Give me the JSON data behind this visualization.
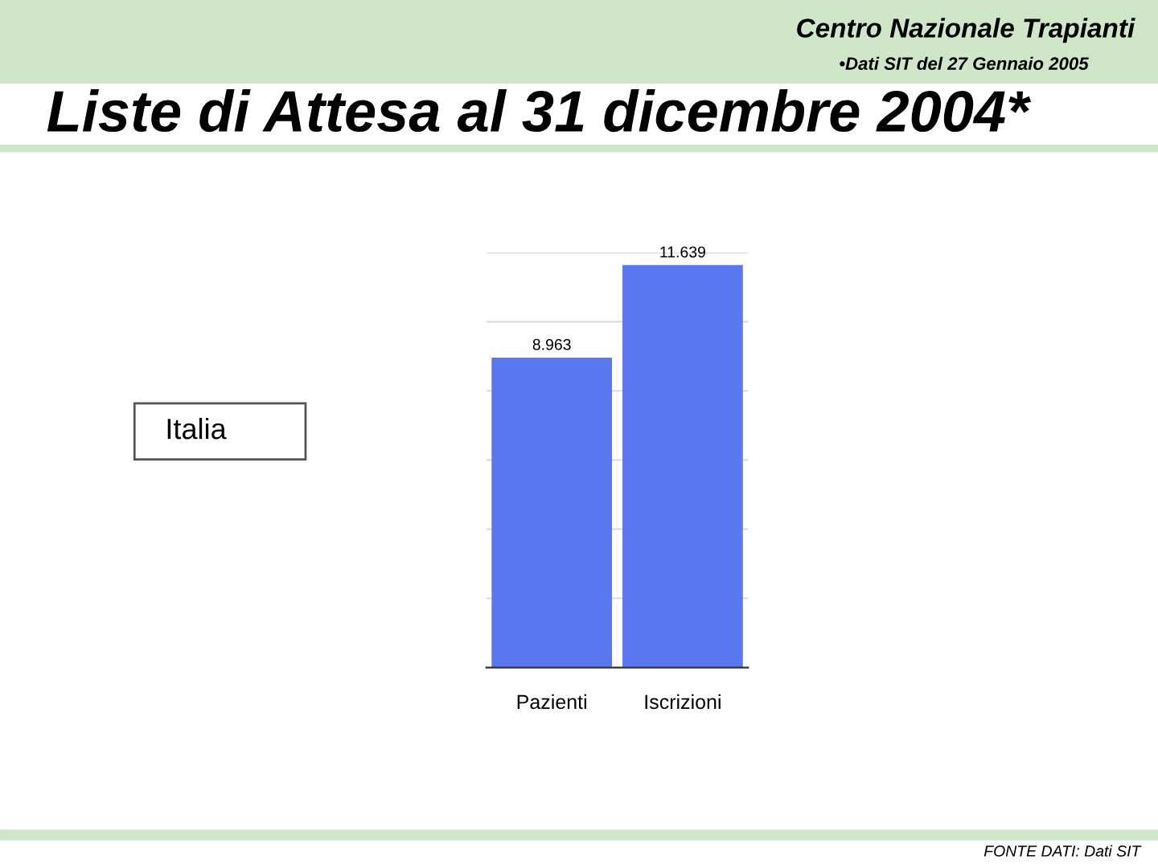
{
  "chart_data": {
    "type": "bar",
    "title": "Liste di Attesa al 31 dicembre 2004*",
    "categories": [
      "Pazienti",
      "Iscrizioni"
    ],
    "values": [
      8963,
      11639
    ],
    "value_labels": [
      "8.963",
      "11.639"
    ],
    "color": "#5a78f2",
    "ylim": [
      0,
      12000
    ],
    "yticks": [
      {
        "value": 0,
        "label": null
      },
      {
        "value": 2000,
        "label": null
      },
      {
        "value": 4000,
        "label": null
      },
      {
        "value": 6000,
        "label": null
      },
      {
        "value": 8000,
        "label": null
      },
      {
        "value": 10000,
        "label": null
      },
      {
        "value": 12000,
        "label": null
      }
    ],
    "grid": "y",
    "tick_labels": "x",
    "annotations": [
      "Centro Nazionale Trapianti",
      "•Dati SIT del 27 Gennaio 2005",
      "Italia",
      "FONTE DATI: Dati SIT"
    ]
  }
}
